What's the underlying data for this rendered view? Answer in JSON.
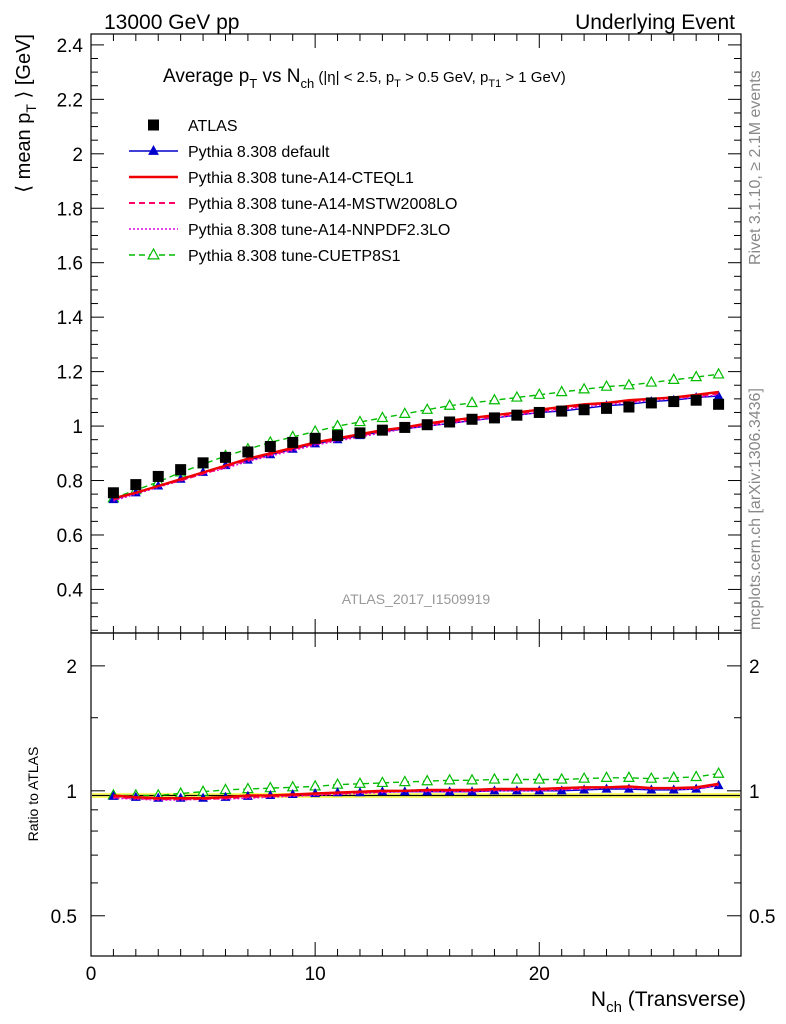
{
  "header": {
    "left": "13000 GeV pp",
    "right": "Underlying Event"
  },
  "side_labels": {
    "rivet": "Rivet 3.1.10, ≥ 2.1M events",
    "mcplots": "mcplots.cern.ch [arXiv:1306.3436]"
  },
  "chart_data": [
    {
      "type": "line",
      "title": "Average p_T vs N_ch (|η| < 2.5, p_T > 0.5 GeV, p_T1 > 1 GeV)",
      "title_parts": {
        "a": "Average p",
        "a_sub": "T",
        "b": " vs N",
        "b_sub": "ch",
        "c": " (|η| < 2.5, p",
        "c_sub": "T",
        "d": " > 0.5 GeV, p",
        "d_sub": "T1",
        "e": " > 1 GeV)"
      },
      "ylabel_parts": {
        "a": "⟨ mean p",
        "sub": "T",
        "b": " ⟩ [GeV]"
      },
      "watermark": "ATLAS_2017_I1509919",
      "xlim": [
        0,
        29
      ],
      "ylim": [
        0.24,
        2.44
      ],
      "yticks": [
        "0.4",
        "0.6",
        "0.8",
        "1",
        "1.2",
        "1.4",
        "1.6",
        "1.8",
        "2",
        "2.2",
        "2.4"
      ],
      "ytick_values": [
        0.4,
        0.6,
        0.8,
        1.0,
        1.2,
        1.4,
        1.6,
        1.8,
        2.0,
        2.2,
        2.4
      ],
      "x": [
        1,
        2,
        3,
        4,
        5,
        6,
        7,
        8,
        9,
        10,
        11,
        12,
        13,
        14,
        15,
        16,
        17,
        18,
        19,
        20,
        21,
        22,
        23,
        24,
        25,
        26,
        27,
        28
      ],
      "series": [
        {
          "name": "ATLAS",
          "color": "#000000",
          "style": "square-markers",
          "values": [
            0.755,
            0.785,
            0.815,
            0.84,
            0.865,
            0.885,
            0.905,
            0.925,
            0.94,
            0.955,
            0.965,
            0.975,
            0.985,
            0.995,
            1.005,
            1.015,
            1.025,
            1.03,
            1.04,
            1.05,
            1.055,
            1.06,
            1.065,
            1.07,
            1.085,
            1.09,
            1.095,
            1.08
          ]
        },
        {
          "name": "Pythia 8.308 default",
          "color": "#0000cc",
          "style": "solid-triangles",
          "values": [
            0.73,
            0.755,
            0.78,
            0.805,
            0.83,
            0.855,
            0.875,
            0.895,
            0.915,
            0.935,
            0.95,
            0.965,
            0.98,
            0.99,
            1.0,
            1.01,
            1.02,
            1.03,
            1.04,
            1.05,
            1.055,
            1.065,
            1.075,
            1.08,
            1.09,
            1.095,
            1.105,
            1.11
          ]
        },
        {
          "name": "Pythia 8.308 tune-A14-CTEQL1",
          "color": "#ee0000",
          "style": "solid",
          "values": [
            0.735,
            0.755,
            0.78,
            0.805,
            0.83,
            0.855,
            0.88,
            0.9,
            0.92,
            0.94,
            0.955,
            0.97,
            0.985,
            0.995,
            1.01,
            1.02,
            1.03,
            1.04,
            1.05,
            1.06,
            1.07,
            1.08,
            1.085,
            1.095,
            1.1,
            1.105,
            1.115,
            1.125
          ]
        },
        {
          "name": "Pythia 8.308 tune-A14-MSTW2008LO",
          "color": "#ff0066",
          "style": "dashed",
          "values": [
            0.73,
            0.755,
            0.78,
            0.8,
            0.825,
            0.85,
            0.875,
            0.895,
            0.915,
            0.935,
            0.95,
            0.965,
            0.98,
            0.995,
            1.005,
            1.015,
            1.025,
            1.035,
            1.045,
            1.055,
            1.065,
            1.075,
            1.085,
            1.09,
            1.1,
            1.105,
            1.11,
            1.12
          ]
        },
        {
          "name": "Pythia 8.308 tune-A14-NNPDF2.3LO",
          "color": "#dd00dd",
          "style": "dotted",
          "values": [
            0.725,
            0.75,
            0.775,
            0.8,
            0.825,
            0.845,
            0.87,
            0.89,
            0.91,
            0.93,
            0.945,
            0.96,
            0.975,
            0.99,
            1.0,
            1.01,
            1.02,
            1.03,
            1.04,
            1.05,
            1.06,
            1.07,
            1.08,
            1.085,
            1.095,
            1.1,
            1.105,
            1.115
          ]
        },
        {
          "name": "Pythia 8.308 tune-CUETP8S1",
          "color": "#00bb00",
          "style": "dashed-open-triangles",
          "values": [
            0.735,
            0.765,
            0.795,
            0.83,
            0.86,
            0.89,
            0.915,
            0.94,
            0.96,
            0.98,
            1.0,
            1.015,
            1.03,
            1.045,
            1.06,
            1.075,
            1.085,
            1.095,
            1.105,
            1.115,
            1.125,
            1.135,
            1.145,
            1.15,
            1.16,
            1.17,
            1.18,
            1.19
          ]
        }
      ]
    },
    {
      "type": "line",
      "ylabel": "Ratio to ATLAS",
      "xlabel_parts": {
        "a": "N",
        "sub": "ch",
        "b": " (Transverse)"
      },
      "xlim": [
        0,
        29
      ],
      "ylim": [
        0.4,
        2.4
      ],
      "yscale": "log",
      "yticks": [
        "0.5",
        "1",
        "2"
      ],
      "ytick_values": [
        0.5,
        1,
        2
      ],
      "xticks": [
        "0",
        "10",
        "20"
      ],
      "xtick_values": [
        0,
        10,
        20
      ],
      "band_color": "#ffff66",
      "x": [
        1,
        2,
        3,
        4,
        5,
        6,
        7,
        8,
        9,
        10,
        11,
        12,
        13,
        14,
        15,
        16,
        17,
        18,
        19,
        20,
        21,
        22,
        23,
        24,
        25,
        26,
        27,
        28
      ],
      "series": [
        {
          "name": "Pythia 8.308 default",
          "color": "#0000cc",
          "style": "solid-triangles",
          "values": [
            0.97,
            0.965,
            0.96,
            0.96,
            0.96,
            0.965,
            0.97,
            0.975,
            0.98,
            0.985,
            0.99,
            0.99,
            0.995,
            0.995,
            0.995,
            0.995,
            0.995,
            1.0,
            1.0,
            1.0,
            1.0,
            1.005,
            1.01,
            1.01,
            1.005,
            1.005,
            1.01,
            1.03
          ]
        },
        {
          "name": "Pythia 8.308 tune-A14-CTEQL1",
          "color": "#ee0000",
          "style": "solid",
          "values": [
            0.975,
            0.965,
            0.96,
            0.96,
            0.96,
            0.965,
            0.975,
            0.975,
            0.98,
            0.985,
            0.99,
            0.995,
            1.0,
            1.0,
            1.005,
            1.005,
            1.005,
            1.01,
            1.01,
            1.01,
            1.015,
            1.02,
            1.02,
            1.025,
            1.015,
            1.015,
            1.02,
            1.04
          ]
        },
        {
          "name": "Pythia 8.308 tune-A14-MSTW2008LO",
          "color": "#ff0066",
          "style": "dashed",
          "values": [
            0.965,
            0.96,
            0.955,
            0.955,
            0.955,
            0.96,
            0.965,
            0.97,
            0.975,
            0.98,
            0.985,
            0.99,
            0.995,
            1.0,
            1.0,
            1.0,
            1.0,
            1.005,
            1.005,
            1.005,
            1.01,
            1.015,
            1.02,
            1.02,
            1.015,
            1.015,
            1.015,
            1.035
          ]
        },
        {
          "name": "Pythia 8.308 tune-A14-NNPDF2.3LO",
          "color": "#dd00dd",
          "style": "dotted",
          "values": [
            0.96,
            0.955,
            0.95,
            0.95,
            0.955,
            0.955,
            0.96,
            0.965,
            0.97,
            0.975,
            0.98,
            0.985,
            0.99,
            0.995,
            0.995,
            0.995,
            0.995,
            1.0,
            1.0,
            1.0,
            1.005,
            1.01,
            1.015,
            1.015,
            1.01,
            1.01,
            1.01,
            1.03
          ]
        },
        {
          "name": "Pythia 8.308 tune-CUETP8S1",
          "color": "#00bb00",
          "style": "dashed-open-triangles",
          "values": [
            0.975,
            0.975,
            0.975,
            0.985,
            0.995,
            1.005,
            1.01,
            1.015,
            1.02,
            1.025,
            1.035,
            1.04,
            1.045,
            1.05,
            1.055,
            1.06,
            1.06,
            1.065,
            1.065,
            1.065,
            1.065,
            1.07,
            1.075,
            1.075,
            1.07,
            1.075,
            1.08,
            1.1
          ]
        }
      ]
    }
  ]
}
